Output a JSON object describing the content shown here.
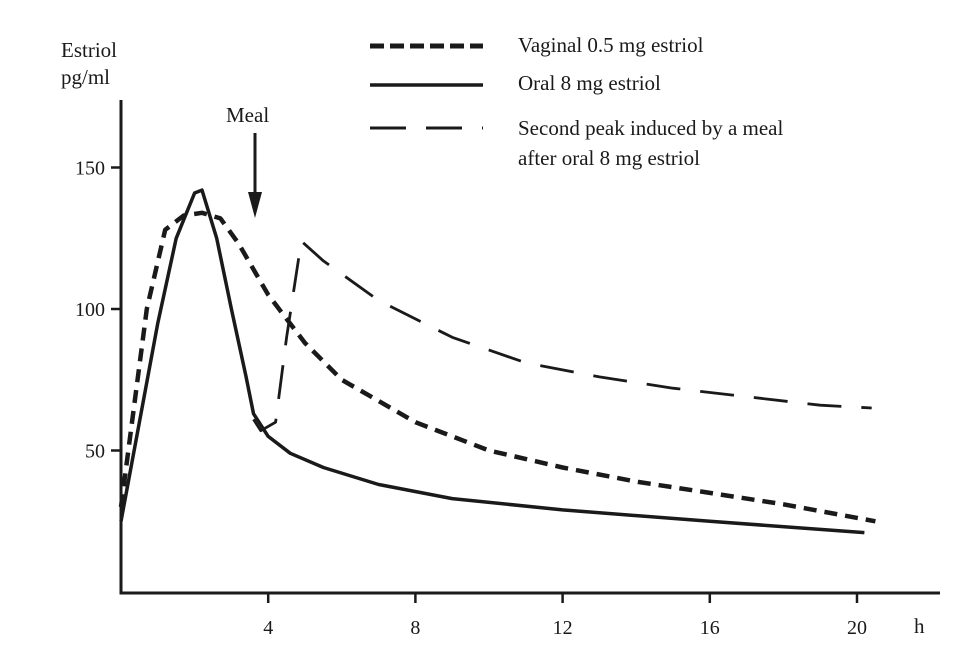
{
  "chart_data": {
    "type": "line",
    "title": "",
    "ylabel": "Estriol",
    "yunit": "pg/ml",
    "xlabel": "h",
    "xlim": [
      0,
      21.5
    ],
    "ylim": [
      0,
      170
    ],
    "x_ticks": [
      4,
      8,
      12,
      16,
      20
    ],
    "y_ticks": [
      50,
      100,
      150
    ],
    "legend_position": "top-right",
    "series": [
      {
        "name": "Vaginal 0.5 mg estriol",
        "style": "short-dash",
        "x": [
          0,
          0.3,
          0.7,
          1.2,
          1.7,
          2.2,
          2.7,
          3.2,
          4,
          5,
          6,
          8,
          10,
          12,
          14,
          16,
          18,
          20.5
        ],
        "y": [
          30,
          60,
          100,
          128,
          133,
          134,
          132,
          123,
          105,
          88,
          75,
          60,
          50,
          44,
          39,
          35,
          31,
          25
        ]
      },
      {
        "name": "Oral 8 mg estriol",
        "style": "solid",
        "x": [
          0,
          0.5,
          1,
          1.5,
          2,
          2.2,
          2.6,
          3,
          3.4,
          3.6,
          4,
          4.6,
          5.5,
          7,
          9,
          12,
          16,
          20.2
        ],
        "y": [
          25,
          60,
          95,
          125,
          141,
          142,
          125,
          100,
          76,
          63,
          55,
          49,
          44,
          38,
          33,
          29,
          25,
          21
        ]
      },
      {
        "name": "Second peak induced by a meal",
        "name_line2": "after oral 8 mg estriol",
        "style": "long-dash",
        "x": [
          3.6,
          3.8,
          4.2,
          4.5,
          4.9,
          5.5,
          7,
          9,
          11,
          13,
          15,
          17,
          19,
          20.4
        ],
        "y": [
          61,
          57,
          60,
          90,
          124,
          117,
          103,
          90,
          81,
          76,
          72,
          69,
          66,
          65
        ]
      }
    ],
    "annotations": [
      {
        "text": "Meal",
        "x": 3.6,
        "y": 165
      }
    ]
  }
}
